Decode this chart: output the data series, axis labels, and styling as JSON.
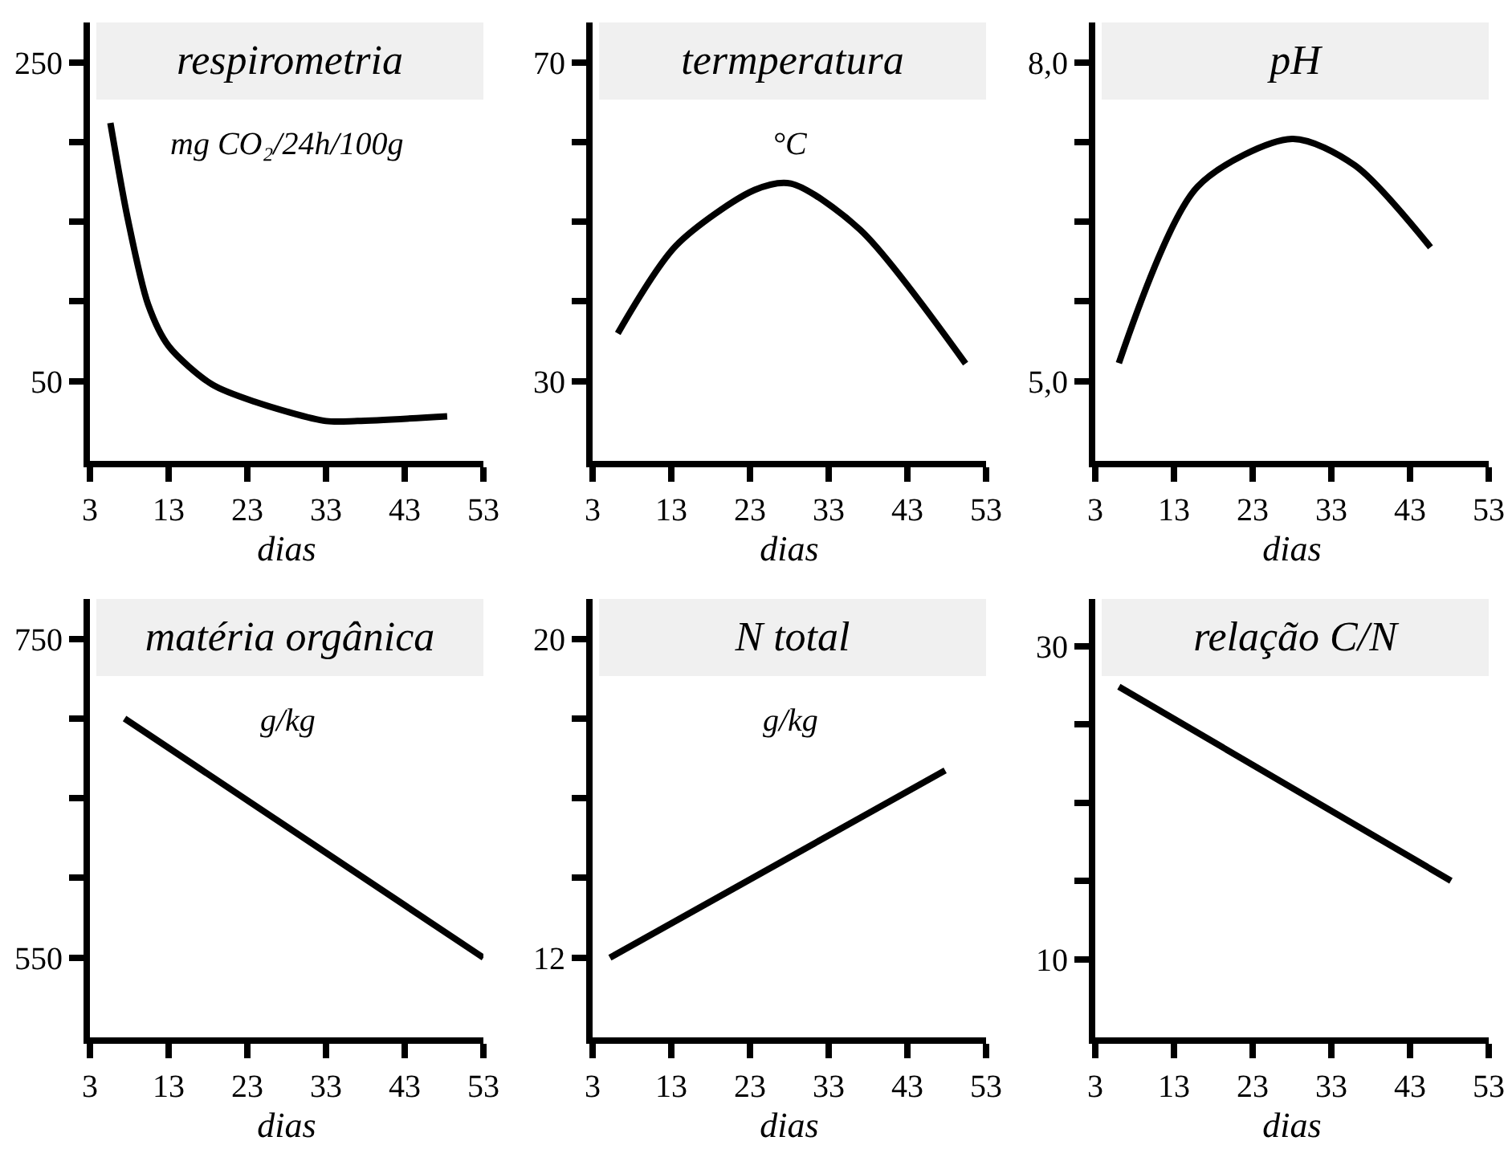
{
  "chart_data": [
    {
      "type": "line",
      "title": "respirometria",
      "subtitle": "mg CO₂/24h/100g",
      "xlabel": "dias",
      "x": [
        5.6,
        7.8,
        10.4,
        13,
        18.5,
        24,
        33,
        37,
        48.4
      ],
      "values": [
        212,
        152,
        98,
        72,
        48,
        37,
        25,
        25,
        28
      ],
      "color": "#000000",
      "xlim": [
        3,
        53
      ],
      "xticks": [
        3,
        13,
        23,
        33,
        43,
        53
      ],
      "ylim": [
        0,
        275
      ],
      "yticks": [
        250,
        {
          "value": 200,
          "label": null
        },
        {
          "value": 150,
          "label": null
        },
        {
          "value": 100,
          "label": null
        },
        50
      ],
      "marker": "none"
    },
    {
      "type": "line",
      "title": "termperatura",
      "subtitle": "°C",
      "xlabel": "dias",
      "x": [
        6.2,
        13.6,
        23.6,
        28.2,
        37,
        50.4
      ],
      "values": [
        36,
        47,
        54,
        54.8,
        49,
        32.2
      ],
      "color": "#000000",
      "xlim": [
        3,
        53
      ],
      "xticks": [
        3,
        13,
        23,
        33,
        43,
        53
      ],
      "ylim": [
        20,
        75
      ],
      "yticks": [
        70,
        {
          "value": 60,
          "label": null
        },
        {
          "value": 50,
          "label": null
        },
        {
          "value": 40,
          "label": null
        },
        30
      ],
      "marker": "none"
    },
    {
      "type": "line",
      "title": "pH",
      "xlabel": "dias",
      "x": [
        6,
        16,
        28,
        36,
        45.6
      ],
      "values": [
        5.17,
        6.83,
        7.28,
        7.03,
        6.26
      ],
      "color": "#000000",
      "xlim": [
        3,
        53
      ],
      "xticks": [
        3,
        13,
        23,
        33,
        43,
        53
      ],
      "ylim": [
        4.25,
        8.375
      ],
      "yticks": [
        {
          "value": 8,
          "label": "8,0"
        },
        {
          "value": 7.25,
          "label": null
        },
        {
          "value": 6.5,
          "label": null
        },
        {
          "value": 5.75,
          "label": null
        },
        {
          "value": 5,
          "label": "5,0"
        }
      ],
      "marker": "none"
    },
    {
      "type": "line",
      "title": "matéria orgânica",
      "subtitle": "g/kg",
      "xlabel": "dias",
      "x": [
        7.4,
        53
      ],
      "values": [
        700,
        550
      ],
      "color": "#000000",
      "xlim": [
        3,
        53
      ],
      "xticks": [
        3,
        13,
        23,
        33,
        43,
        53
      ],
      "ylim": [
        500,
        775
      ],
      "yticks": [
        750,
        {
          "value": 700,
          "label": null
        },
        {
          "value": 650,
          "label": null
        },
        {
          "value": 600,
          "label": null
        },
        550
      ],
      "marker": "none"
    },
    {
      "type": "line",
      "title": "N total",
      "subtitle": "g/kg",
      "xlabel": "dias",
      "x": [
        5.2,
        47.8
      ],
      "values": [
        12,
        16.7
      ],
      "color": "#000000",
      "xlim": [
        3,
        53
      ],
      "xticks": [
        3,
        13,
        23,
        33,
        43,
        53
      ],
      "ylim": [
        10,
        21
      ],
      "yticks": [
        20,
        {
          "value": 18,
          "label": null
        },
        {
          "value": 16,
          "label": null
        },
        {
          "value": 14,
          "label": null
        },
        12
      ],
      "marker": "none"
    },
    {
      "type": "line",
      "title": "relação C/N",
      "xlabel": "dias",
      "x": [
        6,
        48.2
      ],
      "values": [
        27.4,
        15
      ],
      "color": "#000000",
      "xlim": [
        3,
        53
      ],
      "xticks": [
        3,
        13,
        23,
        33,
        43,
        53
      ],
      "ylim": [
        5,
        33
      ],
      "yticks": [
        30,
        {
          "value": 25,
          "label": null
        },
        {
          "value": 20,
          "label": null
        },
        {
          "value": 15,
          "label": null
        },
        10
      ],
      "marker": "none"
    }
  ]
}
